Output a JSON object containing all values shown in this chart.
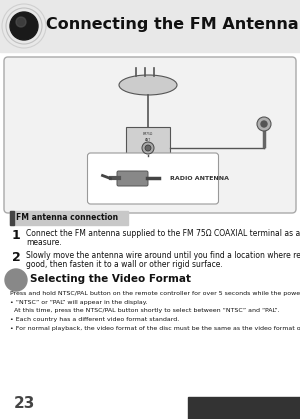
{
  "title": "Connecting the FM Antenna",
  "page_number": "23",
  "bg_color": "#ffffff",
  "section1_label": "FM antenna connection",
  "step1_num": "1",
  "step1_line1": "Connect the FM antenna supplied to the FM 75Ω COAXIAL terminal as a temporary",
  "step1_line2": "measure.",
  "step2_num": "2",
  "step2_line1": "Slowly move the antenna wire around until you find a location where reception is",
  "step2_line2": "good, then fasten it to a wall or other rigid surface.",
  "section2_label": "Selecting the Video Format",
  "sec2_body": "Press and hold NTSC/PAL button on the remote controller for over 5 seconds while the power is turned off.",
  "sec2_b1a": "• “NTSC” or “PAL” will appear in the display.",
  "sec2_b1b": "  At this time, press the NTSC/PAL button shortly to select between “NTSC” and “PAL”.",
  "sec2_b2": "• Each country has a different video format standard.",
  "sec2_b3": "• For normal playback, the video format of the disc must be the same as the video format of your TV.",
  "radio_antenna_label": "RADIO ANTENNA"
}
